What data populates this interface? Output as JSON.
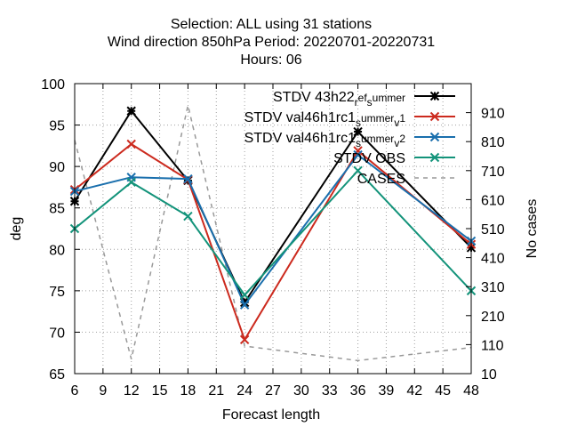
{
  "chart_data": {
    "type": "line",
    "title_lines": [
      "Selection: ALL using    31 stations",
      "Wind direction 850hPa   Period: 20220701-20220731",
      "Hours:  06"
    ],
    "xlabel": "Forecast length",
    "ylabel": "deg",
    "y2label": "No cases",
    "x": [
      6,
      12,
      18,
      24,
      36,
      48
    ],
    "xlim": [
      6,
      48
    ],
    "xticks": [
      6,
      9,
      12,
      15,
      18,
      21,
      24,
      27,
      30,
      33,
      36,
      39,
      42,
      45,
      48
    ],
    "ylim": [
      65,
      100
    ],
    "yticks": [
      65,
      70,
      75,
      80,
      85,
      90,
      95,
      100
    ],
    "y2lim": [
      10,
      1010
    ],
    "y2ticks": [
      10,
      110,
      210,
      310,
      410,
      510,
      610,
      710,
      810,
      910
    ],
    "grid": true,
    "legend_position": "top-right",
    "series": [
      {
        "name": "STDV 43h22_ref_summer",
        "legend_parts": [
          "STDV 43h22",
          "r",
          "ef",
          "s",
          "ummer"
        ],
        "color": "#000000",
        "marker": "star",
        "axis": "y",
        "values": [
          85.8,
          96.7,
          88.3,
          73.6,
          94.2,
          80.2
        ]
      },
      {
        "name": "STDV val46h1rc1_summer_v1",
        "legend_parts": [
          "STDV val46h1rc1",
          "s",
          "ummer",
          "v",
          "1"
        ],
        "color": "#cc2a1e",
        "marker": "x",
        "axis": "y",
        "values": [
          87.2,
          92.7,
          88.4,
          69.1,
          91.9,
          80.6
        ]
      },
      {
        "name": "STDV val46h1rc1_summer_v2",
        "legend_parts": [
          "STDV val46h1rc1",
          "s",
          "ummer",
          "v",
          "2"
        ],
        "color": "#1a6fad",
        "marker": "x",
        "axis": "y",
        "values": [
          87.0,
          88.7,
          88.5,
          73.3,
          91.4,
          81.0
        ]
      },
      {
        "name": "STDV OBS",
        "color": "#13937a",
        "marker": "x",
        "axis": "y",
        "values": [
          82.5,
          88.1,
          84.0,
          74.5,
          89.5,
          75.0
        ]
      },
      {
        "name": "CASES",
        "color": "#999999",
        "marker": "none",
        "dashed": true,
        "axis": "y2",
        "values": [
          815,
          60,
          935,
          105,
          55,
          100
        ]
      }
    ]
  }
}
